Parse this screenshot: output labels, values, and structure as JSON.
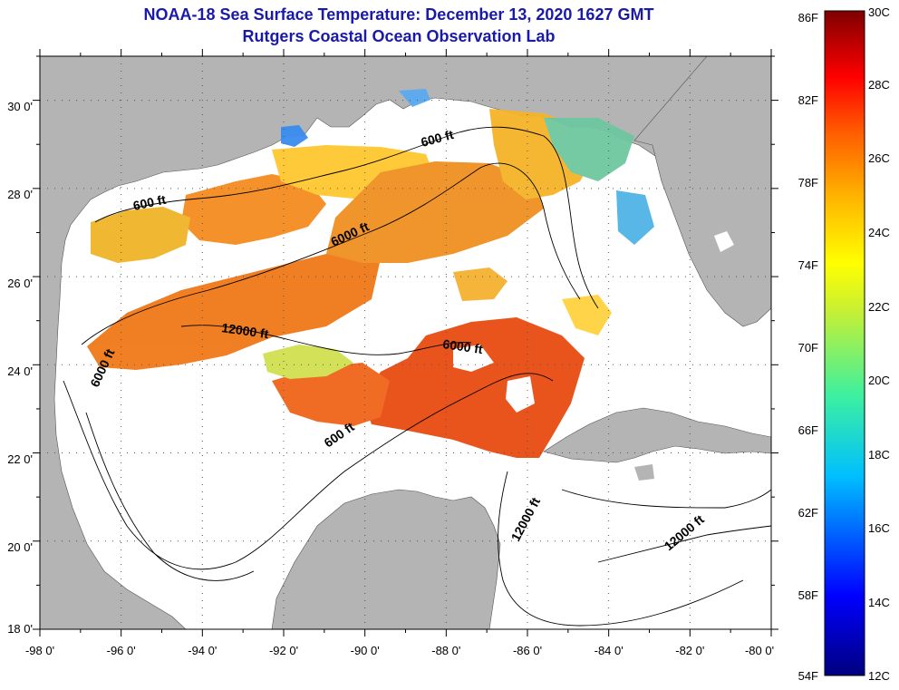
{
  "header": {
    "title": "NOAA-18 Sea Surface Temperature:  December 13, 2020 1627 GMT",
    "subtitle": "Rutgers Coastal Ocean Observation Lab"
  },
  "map": {
    "lon_range": [
      -98,
      -80
    ],
    "lat_range": [
      18,
      31
    ],
    "lon_ticks": [
      "-98 0'",
      "-96 0'",
      "-94 0'",
      "-92 0'",
      "-90 0'",
      "-88 0'",
      "-86 0'",
      "-84 0'",
      "-82 0'",
      "-80 0'"
    ],
    "lat_ticks": [
      "30 0'",
      "28 0'",
      "26 0'",
      "24 0'",
      "22 0'",
      "20 0'",
      "18 0'"
    ],
    "contour_labels": [
      "600 ft",
      "600 ft",
      "600 ft",
      "6000 ft",
      "6000 ft",
      "6000 ft",
      "12000 ft",
      "12000 ft",
      "12000 ft"
    ],
    "land_color": "#b4b4b4",
    "water_no_data_color": "#ffffff"
  },
  "colorbar": {
    "fahrenheit_labels": [
      "86F",
      "82F",
      "78F",
      "74F",
      "70F",
      "66F",
      "62F",
      "58F",
      "54F"
    ],
    "celsius_labels": [
      "30C",
      "28C",
      "26C",
      "24C",
      "22C",
      "20C",
      "18C",
      "16C",
      "14C",
      "12C"
    ],
    "range_c": [
      12,
      30
    ]
  }
}
